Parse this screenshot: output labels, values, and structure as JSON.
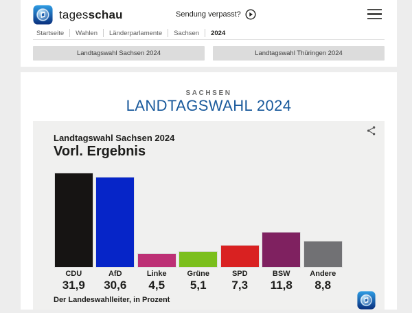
{
  "header": {
    "brand_regular": "tages",
    "brand_bold": "schau",
    "sendung_verpasst_label": "Sendung verpasst?"
  },
  "breadcrumb": {
    "items": [
      "Startseite",
      "Wahlen",
      "Länderparlamente",
      "Sachsen",
      "2024"
    ]
  },
  "quick_links": {
    "sachsen_label": "Landtagswahl Sachsen 2024",
    "thueringen_label": "Landtagswahl Thüringen 2024"
  },
  "page": {
    "kicker": "SACHSEN",
    "title": "LANDTAGSWAHL 2024"
  },
  "chart_data": {
    "type": "bar",
    "title": "Landtagswahl Sachsen 2024",
    "subtitle": "Vorl. Ergebnis",
    "source": "Der Landeswahlleiter, in Prozent",
    "unit": "Prozent",
    "categories": [
      "CDU",
      "AfD",
      "Linke",
      "Grüne",
      "SPD",
      "BSW",
      "Andere"
    ],
    "values": [
      31.9,
      30.6,
      4.5,
      5.1,
      7.3,
      11.8,
      8.8
    ],
    "value_labels": [
      "31,9",
      "30,6",
      "4,5",
      "5,1",
      "7,3",
      "11,8",
      "8,8"
    ],
    "bar_colors": [
      "#161413",
      "#0625c8",
      "#bd3075",
      "#7bbf1d",
      "#d92121",
      "#7f2160",
      "#717174"
    ],
    "ylim": [
      0,
      33.1
    ],
    "grid": false,
    "legend_position": "none"
  },
  "colors": {
    "title_blue": "#1a5a9c",
    "panel_bg": "#f0f0ef",
    "button_bg": "#dcdcdc",
    "logo_blue_dark": "#0a2f7d",
    "logo_blue_light": "#2f9de4"
  },
  "icons": {
    "share": "share-icon",
    "play": "play-circle-icon",
    "menu": "hamburger-menu-icon",
    "logo": "tagesschau-logo"
  }
}
